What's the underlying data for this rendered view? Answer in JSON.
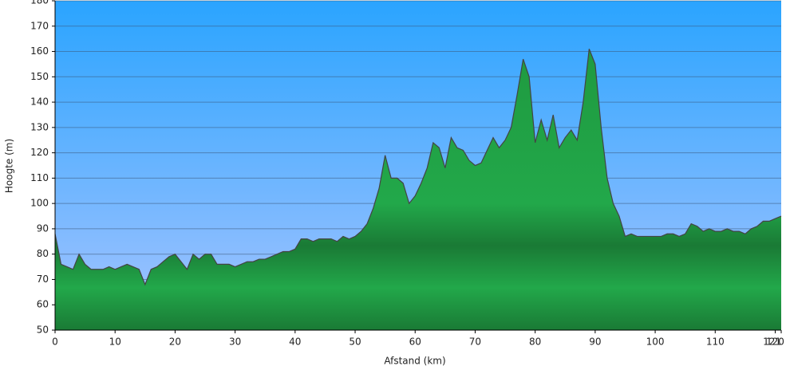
{
  "chart_data": {
    "type": "area",
    "xlabel": "Afstand (km)",
    "ylabel": "Hoogte (m)",
    "color": "#22a84a",
    "line_color": "#444444",
    "x": [
      0,
      1,
      2,
      3,
      4,
      5,
      6,
      7,
      8,
      9,
      10,
      11,
      12,
      13,
      14,
      15,
      16,
      17,
      18,
      19,
      20,
      21,
      22,
      23,
      24,
      25,
      26,
      27,
      28,
      29,
      30,
      31,
      32,
      33,
      34,
      35,
      36,
      37,
      38,
      39,
      40,
      41,
      42,
      43,
      44,
      45,
      46,
      47,
      48,
      49,
      50,
      51,
      52,
      53,
      54,
      55,
      56,
      57,
      58,
      59,
      60,
      61,
      62,
      63,
      64,
      65,
      66,
      67,
      68,
      69,
      70,
      71,
      72,
      73,
      74,
      75,
      76,
      77,
      78,
      79,
      80,
      81,
      82,
      83,
      84,
      85,
      86,
      87,
      88,
      89,
      90,
      91,
      92,
      93,
      94,
      95,
      96,
      97,
      98,
      99,
      100,
      101,
      102,
      103,
      104,
      105,
      106,
      107,
      108,
      109,
      110,
      111,
      112,
      113,
      114,
      115,
      116,
      117,
      118,
      119,
      120,
      121
    ],
    "values": [
      88,
      76,
      75,
      74,
      80,
      76,
      74,
      74,
      74,
      75,
      74,
      75,
      76,
      75,
      74,
      68,
      74,
      75,
      77,
      79,
      80,
      77,
      74,
      80,
      78,
      80,
      80,
      76,
      76,
      76,
      75,
      76,
      77,
      77,
      78,
      78,
      79,
      80,
      81,
      81,
      82,
      86,
      86,
      85,
      86,
      86,
      86,
      85,
      87,
      86,
      87,
      89,
      92,
      98,
      106,
      119,
      110,
      110,
      108,
      100,
      103,
      108,
      114,
      124,
      122,
      114,
      126,
      122,
      121,
      117,
      115,
      116,
      121,
      126,
      122,
      125,
      130,
      143,
      157,
      150,
      124,
      133,
      125,
      135,
      122,
      126,
      129,
      125,
      140,
      161,
      155,
      130,
      110,
      100,
      95,
      87,
      88,
      87,
      87,
      87,
      87,
      87,
      88,
      88,
      87,
      88,
      92,
      91,
      89,
      90,
      89,
      89,
      90,
      89,
      89,
      88,
      90,
      91,
      93,
      93,
      94,
      95
    ],
    "xlim": [
      0,
      121
    ],
    "ylim": [
      50,
      180
    ],
    "xticks": [
      0,
      10,
      20,
      30,
      40,
      50,
      60,
      70,
      80,
      90,
      100,
      110,
      120,
      121
    ],
    "yticks": [
      50,
      60,
      70,
      80,
      90,
      100,
      110,
      120,
      130,
      140,
      150,
      160,
      170,
      180
    ],
    "grid": true
  }
}
